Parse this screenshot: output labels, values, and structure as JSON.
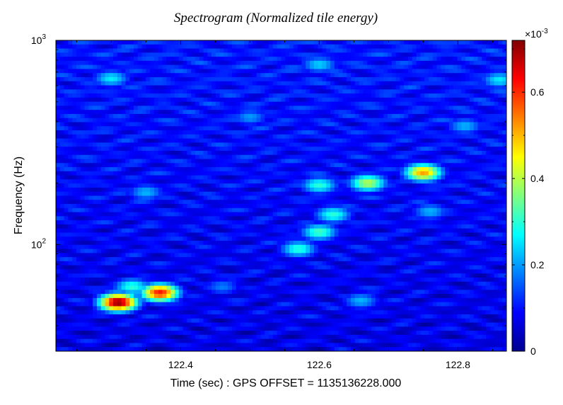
{
  "chart_data": {
    "type": "heatmap",
    "title": "Spectrogram (Normalized tile energy)",
    "xlabel": "Time (sec) : GPS OFFSET = 1135136228.000",
    "ylabel": "Frequency (Hz)",
    "xlim": [
      122.22,
      122.87
    ],
    "ylim": [
      30,
      1000
    ],
    "yscale": "log",
    "x_ticks": [
      "122.4",
      "122.6",
      "122.8"
    ],
    "y_ticks": [
      {
        "base": "10",
        "exp": "2"
      },
      {
        "base": "10",
        "exp": "3"
      }
    ],
    "colorbar": {
      "colormap": "jet",
      "multiplier": "×10",
      "multiplier_exp": "-3",
      "range": [
        0,
        0.00072
      ],
      "ticks": [
        "0",
        "0.2",
        "0.4",
        "0.6"
      ]
    },
    "features": [
      {
        "t": 122.31,
        "f": 52,
        "value": 0.00072
      },
      {
        "t": 122.37,
        "f": 58,
        "value": 0.00062
      },
      {
        "t": 122.33,
        "f": 62,
        "value": 0.0003
      },
      {
        "t": 122.57,
        "f": 95,
        "value": 0.0003
      },
      {
        "t": 122.6,
        "f": 115,
        "value": 0.00032
      },
      {
        "t": 122.62,
        "f": 140,
        "value": 0.0003
      },
      {
        "t": 122.6,
        "f": 195,
        "value": 0.0003
      },
      {
        "t": 122.67,
        "f": 200,
        "value": 0.0004
      },
      {
        "t": 122.75,
        "f": 225,
        "value": 0.00052
      },
      {
        "t": 122.76,
        "f": 145,
        "value": 0.00022
      },
      {
        "t": 122.35,
        "f": 180,
        "value": 0.00022
      },
      {
        "t": 122.46,
        "f": 62,
        "value": 0.00018
      },
      {
        "t": 122.66,
        "f": 53,
        "value": 0.00022
      },
      {
        "t": 122.81,
        "f": 380,
        "value": 0.00022
      },
      {
        "t": 122.3,
        "f": 650,
        "value": 0.00026
      },
      {
        "t": 122.6,
        "f": 760,
        "value": 0.00024
      },
      {
        "t": 122.86,
        "f": 640,
        "value": 0.00026
      },
      {
        "t": 122.5,
        "f": 420,
        "value": 0.0002
      }
    ]
  }
}
